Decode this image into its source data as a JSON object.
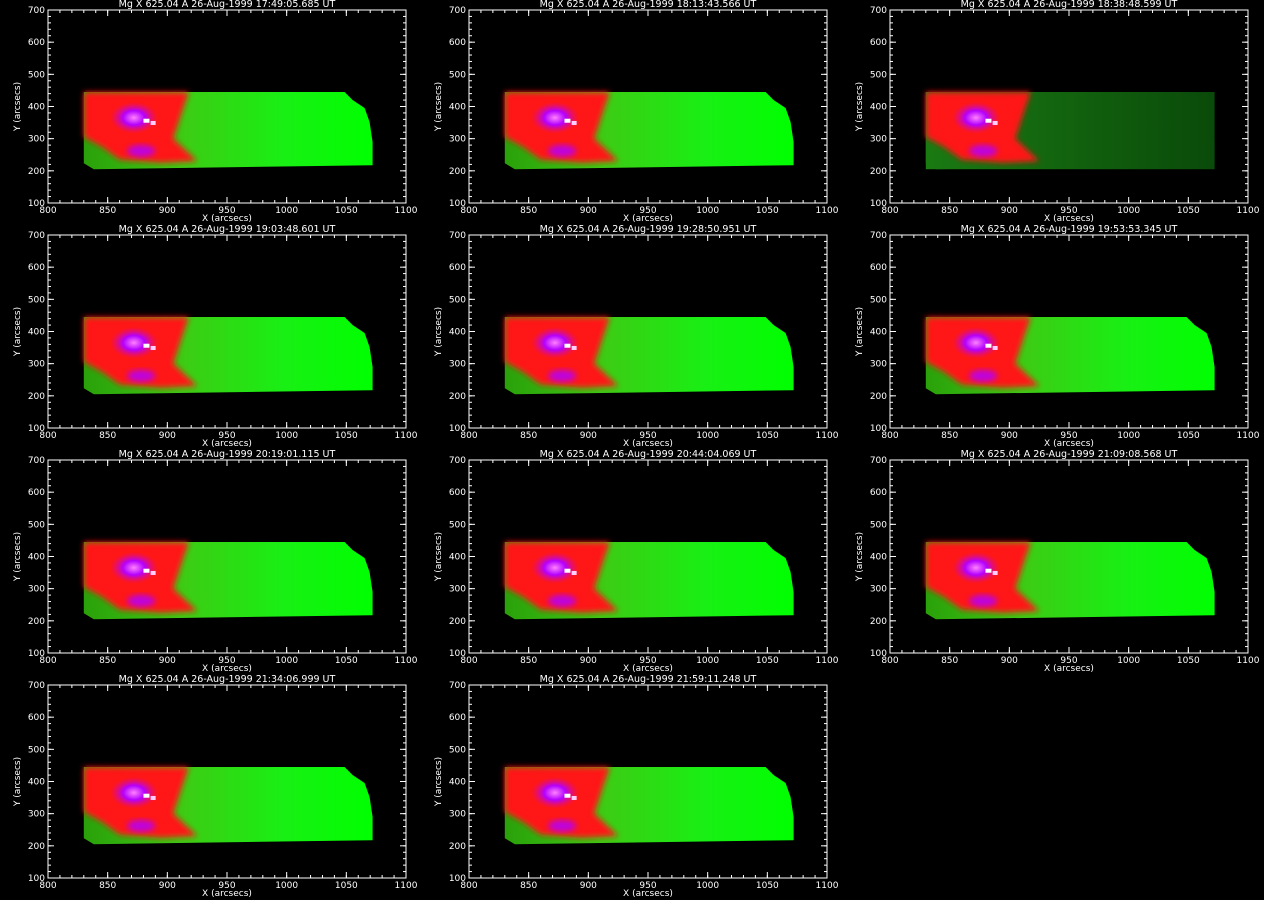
{
  "palette": {
    "background": "#000000",
    "axis": "#ffffff",
    "green": "#00ff00",
    "dark_green": "#0a4a0a",
    "red": "#ff1414",
    "magenta": "#b400ff",
    "white": "#ffffff"
  },
  "shared_axes": {
    "xlabel": "X (arcsecs)",
    "ylabel": "Y (arcsecs)",
    "xlim": [
      800,
      1100
    ],
    "ylim": [
      100,
      700
    ],
    "xticks": [
      800,
      850,
      900,
      950,
      1000,
      1050,
      1100
    ],
    "yticks": [
      100,
      200,
      300,
      400,
      500,
      600,
      700
    ]
  },
  "chart_data": [
    {
      "type": "heatmap",
      "title": "Mg X 625.04 A 26-Aug-1999 17:49:05.685 UT",
      "xlabel": "X (arcsecs)",
      "ylabel": "Y (arcsecs)",
      "xlim": [
        800,
        1100
      ],
      "ylim": [
        100,
        700
      ],
      "data_extent": {
        "x": [
          830,
          1072
        ],
        "y": [
          205,
          445
        ]
      },
      "style": "normal"
    },
    {
      "type": "heatmap",
      "title": "Mg X 625.04 A 26-Aug-1999 18:13:43.566 UT",
      "xlabel": "X (arcsecs)",
      "ylabel": "Y (arcsecs)",
      "xlim": [
        800,
        1100
      ],
      "ylim": [
        100,
        700
      ],
      "data_extent": {
        "x": [
          830,
          1072
        ],
        "y": [
          205,
          445
        ]
      },
      "style": "normal"
    },
    {
      "type": "heatmap",
      "title": "Mg X 625.04 A 26-Aug-1999 18:38:48.599 UT",
      "xlabel": "X (arcsecs)",
      "ylabel": "Y (arcsecs)",
      "xlim": [
        800,
        1100
      ],
      "ylim": [
        100,
        700
      ],
      "data_extent": {
        "x": [
          830,
          1072
        ],
        "y": [
          205,
          445
        ]
      },
      "style": "dark"
    },
    {
      "type": "heatmap",
      "title": "Mg X 625.04 A 26-Aug-1999 19:03:48.601 UT",
      "xlabel": "X (arcsecs)",
      "ylabel": "Y (arcsecs)",
      "xlim": [
        800,
        1100
      ],
      "ylim": [
        100,
        700
      ],
      "data_extent": {
        "x": [
          830,
          1072
        ],
        "y": [
          205,
          445
        ]
      },
      "style": "normal"
    },
    {
      "type": "heatmap",
      "title": "Mg X 625.04 A 26-Aug-1999 19:28:50.951 UT",
      "xlabel": "X (arcsecs)",
      "ylabel": "Y (arcsecs)",
      "xlim": [
        800,
        1100
      ],
      "ylim": [
        100,
        700
      ],
      "data_extent": {
        "x": [
          830,
          1072
        ],
        "y": [
          205,
          445
        ]
      },
      "style": "normal"
    },
    {
      "type": "heatmap",
      "title": "Mg X 625.04 A 26-Aug-1999 19:53:53.345 UT",
      "xlabel": "X (arcsecs)",
      "ylabel": "Y (arcsecs)",
      "xlim": [
        800,
        1100
      ],
      "ylim": [
        100,
        700
      ],
      "data_extent": {
        "x": [
          830,
          1072
        ],
        "y": [
          205,
          445
        ]
      },
      "style": "normal"
    },
    {
      "type": "heatmap",
      "title": "Mg X 625.04 A 26-Aug-1999 20:19:01.115 UT",
      "xlabel": "X (arcsecs)",
      "ylabel": "Y (arcsecs)",
      "xlim": [
        800,
        1100
      ],
      "ylim": [
        100,
        700
      ],
      "data_extent": {
        "x": [
          830,
          1072
        ],
        "y": [
          205,
          445
        ]
      },
      "style": "normal"
    },
    {
      "type": "heatmap",
      "title": "Mg X 625.04 A 26-Aug-1999 20:44:04.069 UT",
      "xlabel": "X (arcsecs)",
      "ylabel": "Y (arcsecs)",
      "xlim": [
        800,
        1100
      ],
      "ylim": [
        100,
        700
      ],
      "data_extent": {
        "x": [
          830,
          1072
        ],
        "y": [
          205,
          445
        ]
      },
      "style": "normal"
    },
    {
      "type": "heatmap",
      "title": "Mg X 625.04 A 26-Aug-1999 21:09:08.568 UT",
      "xlabel": "X (arcsecs)",
      "ylabel": "Y (arcsecs)",
      "xlim": [
        800,
        1100
      ],
      "ylim": [
        100,
        700
      ],
      "data_extent": {
        "x": [
          830,
          1072
        ],
        "y": [
          205,
          445
        ]
      },
      "style": "normal"
    },
    {
      "type": "heatmap",
      "title": "Mg X 625.04 A 26-Aug-1999 21:34:06.999 UT",
      "xlabel": "X (arcsecs)",
      "ylabel": "Y (arcsecs)",
      "xlim": [
        800,
        1100
      ],
      "ylim": [
        100,
        700
      ],
      "data_extent": {
        "x": [
          830,
          1072
        ],
        "y": [
          205,
          445
        ]
      },
      "style": "normal"
    },
    {
      "type": "heatmap",
      "title": "Mg X 625.04 A 26-Aug-1999 21:59:11.248 UT",
      "xlabel": "X (arcsecs)",
      "ylabel": "Y (arcsecs)",
      "xlim": [
        800,
        1100
      ],
      "ylim": [
        100,
        700
      ],
      "data_extent": {
        "x": [
          830,
          1072
        ],
        "y": [
          205,
          445
        ]
      },
      "style": "normal"
    }
  ]
}
